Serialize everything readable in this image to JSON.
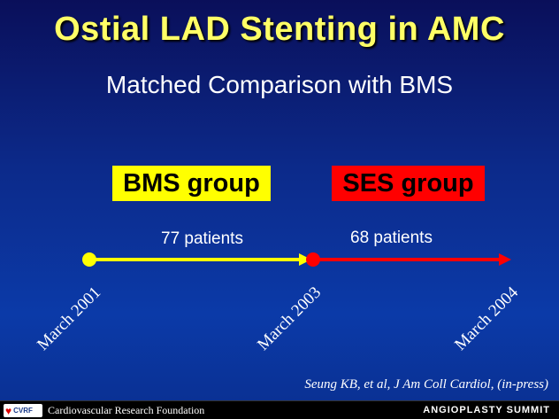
{
  "slide": {
    "title": "Ostial LAD Stenting in AMC",
    "subtitle": "Matched Comparison with BMS"
  },
  "groups": [
    {
      "label": "BMS group",
      "patients": "77 patients",
      "color": "#ffff00"
    },
    {
      "label": "SES group",
      "patients": "68 patients",
      "color": "#ff0000"
    }
  ],
  "timeline": {
    "dates": [
      "March 2001",
      "March 2003",
      "March 2004"
    ]
  },
  "citation": "Seung KB, et al, J Am Coll Cardiol, (in-press)",
  "footer": {
    "logo_text": "CVRF",
    "organization": "Cardiovascular Research Foundation",
    "event": "ANGIOPLASTY SUMMIT"
  }
}
